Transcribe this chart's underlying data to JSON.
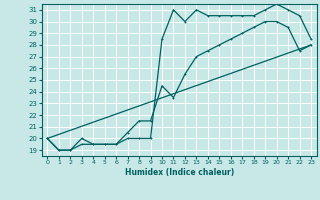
{
  "xlabel": "Humidex (Indice chaleur)",
  "bg_color": "#c8e8e8",
  "grid_color": "#ffffff",
  "line_color": "#006060",
  "xlim": [
    -0.5,
    23.5
  ],
  "ylim": [
    18.5,
    31.5
  ],
  "xticks": [
    0,
    1,
    2,
    3,
    4,
    5,
    6,
    7,
    8,
    9,
    10,
    11,
    12,
    13,
    14,
    15,
    16,
    17,
    18,
    19,
    20,
    21,
    22,
    23
  ],
  "yticks": [
    19,
    20,
    21,
    22,
    23,
    24,
    25,
    26,
    27,
    28,
    29,
    30,
    31
  ],
  "series1_x": [
    0,
    1,
    2,
    3,
    4,
    5,
    6,
    7,
    8,
    9,
    10,
    11,
    12,
    13,
    14,
    15,
    16,
    17,
    18,
    19,
    20,
    21,
    22,
    23
  ],
  "series1_y": [
    20.0,
    19.0,
    19.0,
    19.5,
    19.5,
    19.5,
    19.5,
    20.0,
    20.0,
    20.0,
    28.5,
    31.0,
    30.0,
    31.0,
    30.5,
    30.5,
    30.5,
    30.5,
    30.5,
    31.0,
    31.5,
    31.0,
    30.5,
    28.5
  ],
  "series2_x": [
    0,
    1,
    2,
    3,
    4,
    5,
    6,
    7,
    8,
    9,
    10,
    11,
    12,
    13,
    14,
    15,
    16,
    17,
    18,
    19,
    20,
    21,
    22,
    23
  ],
  "series2_y": [
    20.0,
    19.0,
    19.0,
    20.0,
    19.5,
    19.5,
    19.5,
    20.5,
    21.5,
    21.5,
    24.5,
    23.5,
    25.5,
    27.0,
    27.5,
    28.0,
    28.5,
    29.0,
    29.5,
    30.0,
    30.0,
    29.5,
    27.5,
    28.0
  ],
  "series3_x": [
    0,
    23
  ],
  "series3_y": [
    20.0,
    28.0
  ]
}
